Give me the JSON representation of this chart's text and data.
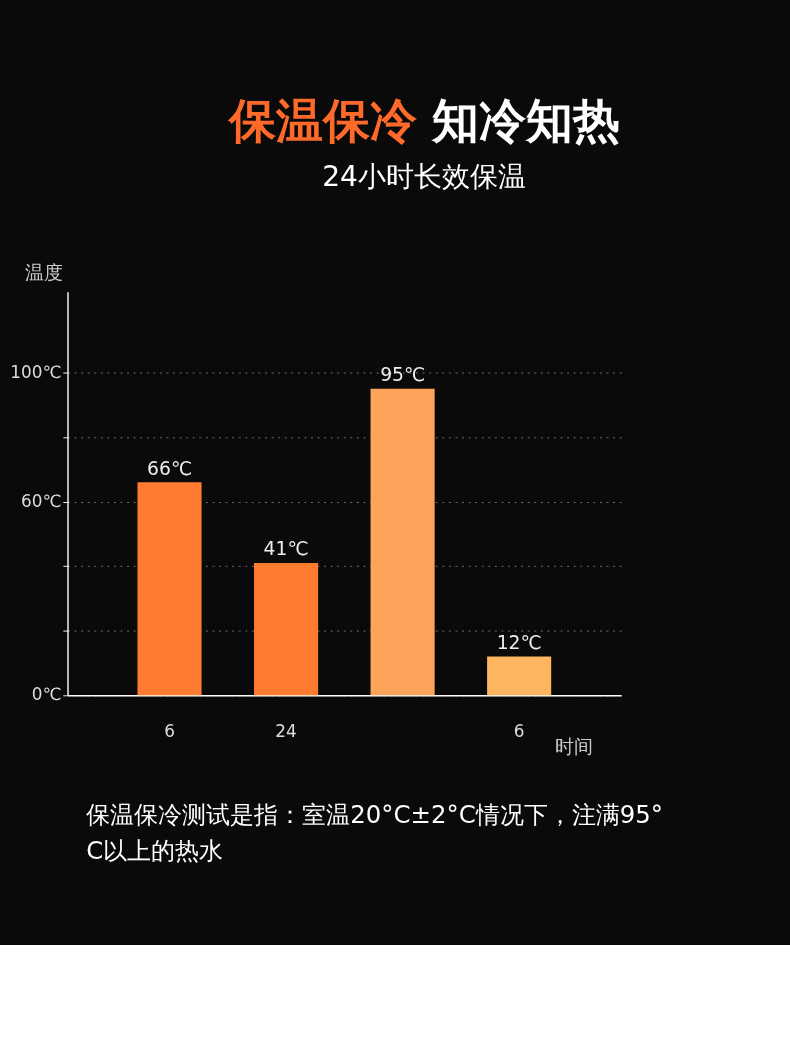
{
  "chart_data": {
    "type": "bar",
    "title": "保温保冷 知冷知热",
    "subtitle": "24小时长效保温",
    "xlabel": "时间",
    "ylabel": "温度",
    "categories": [
      "6",
      "24",
      null,
      "6"
    ],
    "values": [
      66,
      41,
      95,
      12
    ],
    "colors": [
      "#ff7b30",
      "#ff7b30",
      "#fca55a",
      "#fdb55f"
    ],
    "value_labels": [
      "66℃",
      "41℃",
      "95℃",
      "12℃"
    ],
    "ylim": [
      0,
      125
    ],
    "yticks": [
      {
        "value": 0,
        "label": "0℃"
      },
      {
        "value": 20,
        "label": null
      },
      {
        "value": 40,
        "label": null
      },
      {
        "value": 60,
        "label": "60℃"
      },
      {
        "value": 80,
        "label": null
      },
      {
        "value": 100,
        "label": "100℃"
      }
    ],
    "grid": "y",
    "annotations": [
      "保温保冷测试是指：室温20°C±2°C情况下，注满95°C以上的热水"
    ]
  }
}
